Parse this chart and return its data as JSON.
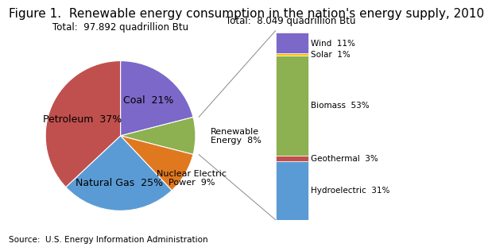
{
  "title": "Figure 1.  Renewable energy consumption in the nation's energy supply, 2010",
  "title_fontsize": 11,
  "pie_total_label": "Total:  97.892 quadrillion Btu",
  "bar_total_label": "Total:  8.049 quadrillion Btu",
  "source_label": "Source:  U.S. Energy Information Administration",
  "pie_labels": [
    "Coal  21%",
    "Renewable\nEnergy  8%",
    "Nuclear Electric\nPower  9%",
    "Natural Gas  25%",
    "Petroleum  37%"
  ],
  "pie_values": [
    21,
    8,
    9,
    25,
    37
  ],
  "pie_colors": [
    "#7B68C8",
    "#8DB050",
    "#E07820",
    "#5B9BD5",
    "#C0504D"
  ],
  "bar_labels": [
    "Hydroelectric  31%",
    "Geothermal  3%",
    "Biomass  53%",
    "Solar  1%",
    "Wind  11%"
  ],
  "bar_values": [
    31,
    3,
    53,
    1,
    11
  ],
  "bar_colors": [
    "#5B9BD5",
    "#C0504D",
    "#8DB050",
    "#FFC000",
    "#7B68C8"
  ],
  "background_color": "#FFFFFF"
}
